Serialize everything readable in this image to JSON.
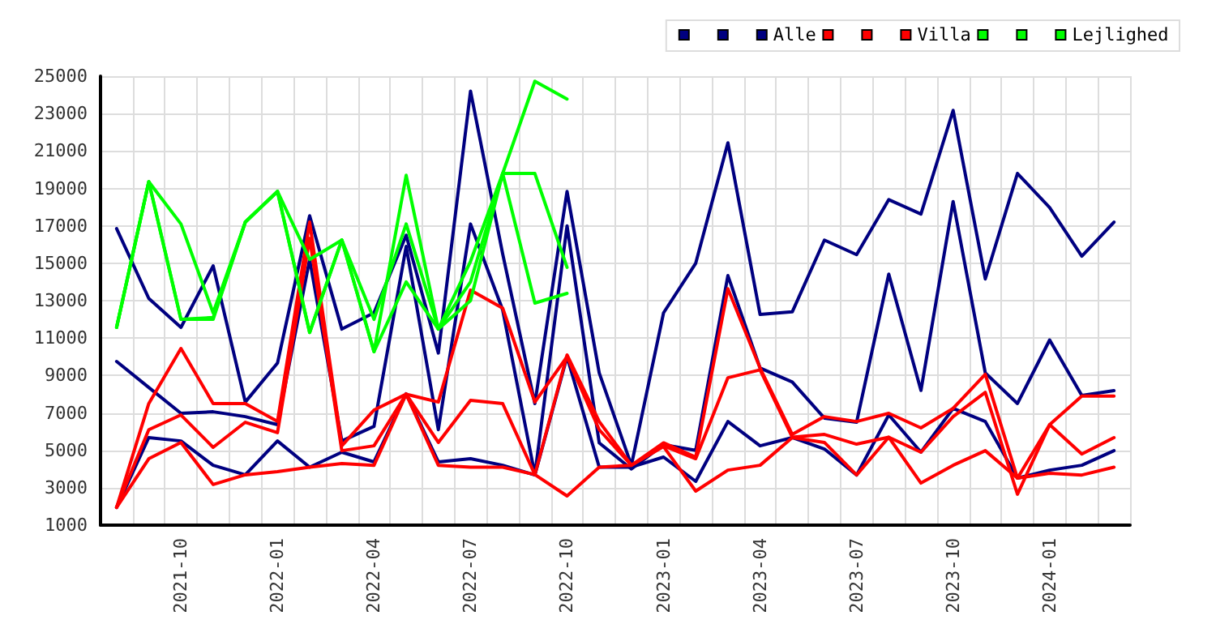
{
  "chart_data": {
    "type": "line",
    "categories": [
      null,
      null,
      "2021-10",
      null,
      null,
      "2022-01",
      null,
      null,
      "2022-04",
      null,
      null,
      "2022-07",
      null,
      null,
      "2022-10",
      null,
      null,
      "2023-01",
      null,
      null,
      "2023-04",
      null,
      null,
      "2023-07",
      null,
      null,
      "2023-10",
      null,
      null,
      "2024-01",
      null,
      null
    ],
    "series": [
      {
        "color": "#000080",
        "values": [
          16850,
          13120,
          11570,
          14860,
          7580,
          9660,
          17540,
          11480,
          12350,
          16500,
          10200,
          24200,
          15500,
          7500,
          18840,
          9140,
          4200,
          12350,
          15000,
          21440,
          12260,
          12400,
          16240,
          15460,
          18400,
          17630,
          23170,
          14160,
          19800,
          17980,
          15380,
          17200
        ]
      },
      {
        "color": "#000080",
        "values": [
          9750,
          8360,
          6980,
          7060,
          6800,
          6370,
          15200,
          5500,
          6280,
          15900,
          6100,
          17100,
          12500,
          3700,
          17000,
          5400,
          4000,
          5300,
          5000,
          14340,
          9400,
          8650,
          6720,
          6500,
          14420,
          8200,
          18300,
          9140,
          7500,
          10900,
          7930,
          8190
        ]
      },
      {
        "name": "Alle",
        "color": "#000080",
        "values": [
          1950,
          5680,
          5500,
          4200,
          3690,
          5500,
          4100,
          4900,
          4380,
          8020,
          4380,
          4550,
          4200,
          3680,
          10000,
          4100,
          4100,
          4640,
          3340,
          6540,
          5240,
          5680,
          5070,
          3680,
          6890,
          4900,
          7240,
          6540,
          3510,
          3940,
          4200,
          4980
        ]
      },
      {
        "color": "#ff0000",
        "values": [
          1950,
          7500,
          10440,
          7500,
          7500,
          6540,
          17200,
          5240,
          7150,
          8000,
          7580,
          13560,
          12600,
          7580,
          10000,
          6100,
          4200,
          5400,
          4640,
          13640,
          9400,
          5850,
          6800,
          6540,
          6980,
          6200,
          7240,
          9060,
          3510,
          6370,
          7900,
          7900
        ]
      },
      {
        "color": "#ff0000",
        "values": [
          1950,
          6100,
          6890,
          5160,
          6500,
          5940,
          16330,
          4980,
          5240,
          8000,
          5420,
          7670,
          7500,
          3700,
          10100,
          6540,
          4200,
          5240,
          4550,
          8880,
          9300,
          5700,
          5850,
          5330,
          5700,
          4900,
          6800,
          8100,
          2650,
          6370,
          4800,
          5680
        ]
      },
      {
        "name": "Villa",
        "color": "#ff0000",
        "values": [
          1950,
          4550,
          5420,
          3170,
          3690,
          3860,
          4100,
          4290,
          4200,
          8000,
          4200,
          4100,
          4100,
          3700,
          2560,
          4100,
          4200,
          5200,
          2820,
          3940,
          4200,
          5680,
          5420,
          3680,
          5700,
          3250,
          4200,
          4980,
          3510,
          3770,
          3680,
          4100
        ]
      },
      {
        "color": "#00ff00",
        "values": [
          11570,
          19360,
          17100,
          12350,
          17200,
          18840,
          11300,
          16240,
          10270,
          19700,
          11480,
          15100,
          19800,
          24730,
          23780,
          null,
          null,
          null,
          null,
          null,
          null,
          null,
          null,
          null,
          null,
          null,
          null,
          null,
          null,
          null,
          null,
          null
        ]
      },
      {
        "color": "#00ff00",
        "values": [
          11570,
          19360,
          12000,
          12100,
          17200,
          18840,
          15200,
          16240,
          12000,
          17100,
          11480,
          14000,
          19800,
          19800,
          14780,
          null,
          null,
          null,
          null,
          null,
          null,
          null,
          null,
          null,
          null,
          null,
          null,
          null,
          null,
          null,
          null,
          null
        ]
      },
      {
        "name": "Lejlighed",
        "color": "#00ff00",
        "values": [
          11570,
          19360,
          12000,
          12000,
          17200,
          18840,
          11300,
          16240,
          10270,
          14000,
          11480,
          13000,
          19800,
          12870,
          13390,
          null,
          null,
          null,
          null,
          null,
          null,
          null,
          null,
          null,
          null,
          null,
          null,
          null,
          null,
          null,
          null,
          null
        ]
      }
    ],
    "ylim": [
      1000,
      25000
    ],
    "yticks": [
      1000,
      3000,
      5000,
      7000,
      9000,
      11000,
      13000,
      15000,
      17000,
      19000,
      21000,
      23000,
      25000
    ],
    "grid": true,
    "legend": "top right",
    "marker": "none",
    "line_style": "solid"
  }
}
